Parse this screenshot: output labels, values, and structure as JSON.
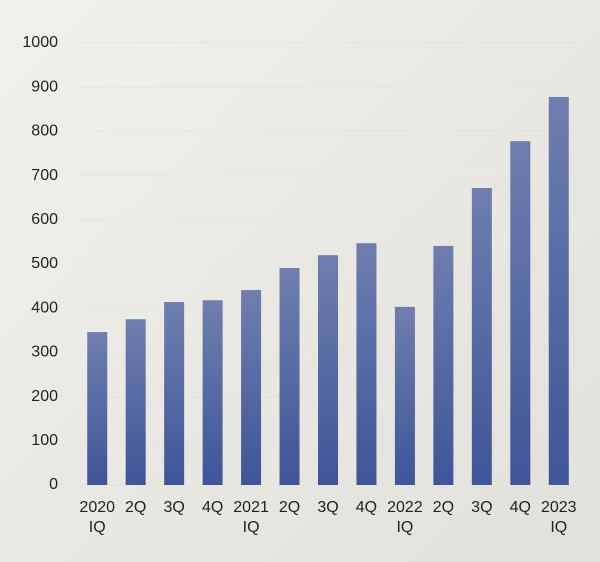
{
  "chart_data": {
    "type": "bar",
    "categories": [
      [
        "2020",
        "IQ"
      ],
      [
        "2Q"
      ],
      [
        "3Q"
      ],
      [
        "4Q"
      ],
      [
        "2021",
        "IQ"
      ],
      [
        "2Q"
      ],
      [
        "3Q"
      ],
      [
        "4Q"
      ],
      [
        "2022",
        "IQ"
      ],
      [
        "2Q"
      ],
      [
        "3Q"
      ],
      [
        "4Q"
      ],
      [
        "2023",
        "IQ"
      ]
    ],
    "values": [
      346,
      375,
      414,
      418,
      441,
      491,
      520,
      547,
      403,
      541,
      672,
      778,
      878
    ],
    "color": "#3f5599",
    "ylim": [
      0,
      1000
    ],
    "yticks": [
      0,
      100,
      200,
      300,
      400,
      500,
      600,
      700,
      800,
      900,
      1000
    ],
    "grid": true
  }
}
